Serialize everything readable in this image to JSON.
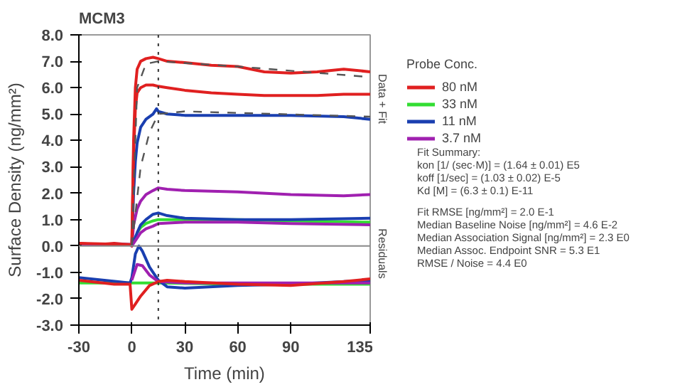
{
  "chart_data": {
    "type": "line",
    "title": "MCM3",
    "xlabel": "Time (min)",
    "ylabel": "Surface Density (ng/mm²)",
    "legend_title": "Probe Conc.",
    "legend": "right",
    "grid": false,
    "xlim": [
      -30,
      135
    ],
    "xticks": [
      -30,
      0,
      30,
      60,
      90,
      135
    ],
    "ylim": [
      -3,
      8
    ],
    "yticks": [
      {
        "value": -3,
        "label": "-3.0"
      },
      {
        "value": -2,
        "label": "-2.0"
      },
      {
        "value": -1,
        "label": "-1.0"
      },
      {
        "value": 0,
        "label": "0.0"
      },
      {
        "value": 1,
        "label": "1.0"
      },
      {
        "value": 2,
        "label": "2.0"
      },
      {
        "value": 3,
        "label": "3.0"
      },
      {
        "value": 4,
        "label": "4.0"
      },
      {
        "value": 5,
        "label": "5.0"
      },
      {
        "value": 6,
        "label": "6.0"
      },
      {
        "value": 7,
        "label": "7.0"
      },
      {
        "value": 8,
        "label": "8.0"
      }
    ],
    "ref_lines": [
      {
        "axis": "x",
        "value": 15,
        "color": "#333333",
        "line_style": "dotted"
      },
      {
        "axis": "y",
        "value": 0,
        "color": "#888888",
        "line_style": "solid"
      }
    ],
    "series": [
      {
        "name": "80 nM",
        "color": "#e02020",
        "x": [
          -30,
          -20,
          -10,
          -1,
          0,
          1,
          2,
          3,
          5,
          8,
          12,
          15,
          20,
          30,
          45,
          60,
          75,
          90,
          105,
          120,
          135
        ],
        "values": [
          0.1,
          0.05,
          0.1,
          0.05,
          0,
          4.0,
          6.0,
          6.7,
          7.0,
          7.1,
          7.15,
          7.1,
          7.0,
          6.95,
          6.85,
          6.8,
          6.6,
          6.55,
          6.6,
          6.7,
          6.6
        ]
      },
      {
        "name": "33 nM",
        "color": "#33dd33",
        "x": [
          3,
          5,
          8,
          12,
          15,
          30,
          60,
          90,
          135
        ],
        "values": [
          0.5,
          0.7,
          0.85,
          0.95,
          1.0,
          1.0,
          1.0,
          0.95,
          0.9
        ]
      },
      {
        "name": "11 nM",
        "color": "#1a3fb0",
        "x": [
          -30,
          -1,
          0,
          1,
          2,
          3,
          5,
          8,
          12,
          14,
          15,
          20,
          30,
          45,
          60,
          90,
          120,
          135
        ],
        "values": [
          0.05,
          0.05,
          0,
          2.0,
          3.2,
          3.9,
          4.5,
          4.8,
          5.0,
          5.2,
          5.1,
          5.0,
          4.95,
          4.95,
          4.95,
          4.95,
          4.9,
          4.8
        ]
      },
      {
        "name": "3.7 nM",
        "color": "#a020b0",
        "x": [
          -30,
          -1,
          0,
          1,
          3,
          5,
          8,
          12,
          15,
          20,
          30,
          60,
          90,
          120,
          135
        ],
        "values": [
          0.05,
          0.05,
          0,
          0.8,
          1.4,
          1.7,
          1.95,
          2.1,
          2.2,
          2.15,
          2.1,
          2.05,
          1.95,
          1.9,
          1.95
        ]
      },
      {
        "color": "#e02020",
        "x": [
          -30,
          -1,
          0,
          1,
          2,
          3,
          5,
          8,
          12,
          15,
          20,
          30,
          45,
          60,
          75,
          90,
          105,
          120,
          135
        ],
        "values": [
          0.1,
          0.05,
          0,
          3.5,
          5.2,
          5.8,
          6.0,
          6.1,
          6.1,
          6.05,
          6.0,
          5.9,
          5.8,
          5.75,
          5.7,
          5.7,
          5.7,
          5.75,
          5.75
        ]
      },
      {
        "color": "#1a3fb0",
        "x": [
          0,
          3,
          5,
          8,
          12,
          15,
          20,
          30,
          60,
          90,
          135
        ],
        "values": [
          0,
          0.5,
          0.8,
          1.0,
          1.2,
          1.25,
          1.15,
          1.05,
          1.0,
          1.0,
          1.05
        ]
      },
      {
        "color": "#a020b0",
        "x": [
          0,
          3,
          5,
          8,
          12,
          15,
          30,
          60,
          90,
          135
        ],
        "values": [
          0,
          0.3,
          0.5,
          0.65,
          0.75,
          0.85,
          0.9,
          0.9,
          0.85,
          0.8
        ]
      },
      {
        "color": "#555555",
        "line_style": "dashed",
        "x": [
          0,
          3,
          8,
          15,
          60,
          135
        ],
        "values": [
          0,
          6.0,
          6.9,
          7.0,
          6.8,
          6.4
        ]
      },
      {
        "color": "#555555",
        "line_style": "dashed",
        "x": [
          0,
          5,
          10,
          15,
          30,
          135
        ],
        "values": [
          0,
          3.0,
          4.3,
          5.0,
          5.1,
          4.9
        ]
      },
      {
        "color": "#33dd33",
        "x": [
          -30,
          0,
          15,
          60,
          135
        ],
        "values": [
          -1.4,
          -1.4,
          -1.4,
          -1.45,
          -1.45
        ]
      },
      {
        "color": "#1a3fb0",
        "x": [
          -30,
          -1,
          0,
          2,
          4,
          6,
          10,
          15,
          20,
          30,
          60,
          90,
          135
        ],
        "values": [
          -1.2,
          -1.4,
          -1.2,
          -0.3,
          0.0,
          -0.2,
          -0.8,
          -1.3,
          -1.55,
          -1.6,
          -1.5,
          -1.45,
          -1.3
        ]
      },
      {
        "color": "#a020b0",
        "x": [
          0,
          3,
          6,
          10,
          15,
          30,
          135
        ],
        "values": [
          -1.3,
          -0.7,
          -0.75,
          -1.1,
          -1.35,
          -1.4,
          -1.4
        ]
      },
      {
        "color": "#e02020",
        "x": [
          -30,
          -10,
          -1,
          0,
          2,
          5,
          10,
          15,
          20,
          30,
          60,
          90,
          120,
          135
        ],
        "values": [
          -1.3,
          -1.45,
          -1.45,
          -2.4,
          -2.2,
          -1.9,
          -1.5,
          -1.35,
          -1.3,
          -1.35,
          -1.45,
          -1.5,
          -1.35,
          -1.25
        ]
      }
    ],
    "annotations": [
      "Data + Fit",
      "Residuals",
      "Fit Summary:",
      "kon  [1/ (sec·M)]  =   (1.64 ± 0.01) E5",
      "koff  [1/sec]  =   (1.03 ± 0.02) E-5",
      "Kd  [M]  =   (6.3 ± 0.1) E-11",
      "Fit RMSE [ng/mm²]  =   2.0 E-1",
      "Median Baseline Noise [ng/mm²]  =   4.6 E-2",
      "Median Association Signal [ng/mm²]  =   2.3 E0",
      "Median Assoc. Endpoint SNR  =   5.3 E1",
      "RMSE / Noise  =   4.4 E0"
    ]
  }
}
